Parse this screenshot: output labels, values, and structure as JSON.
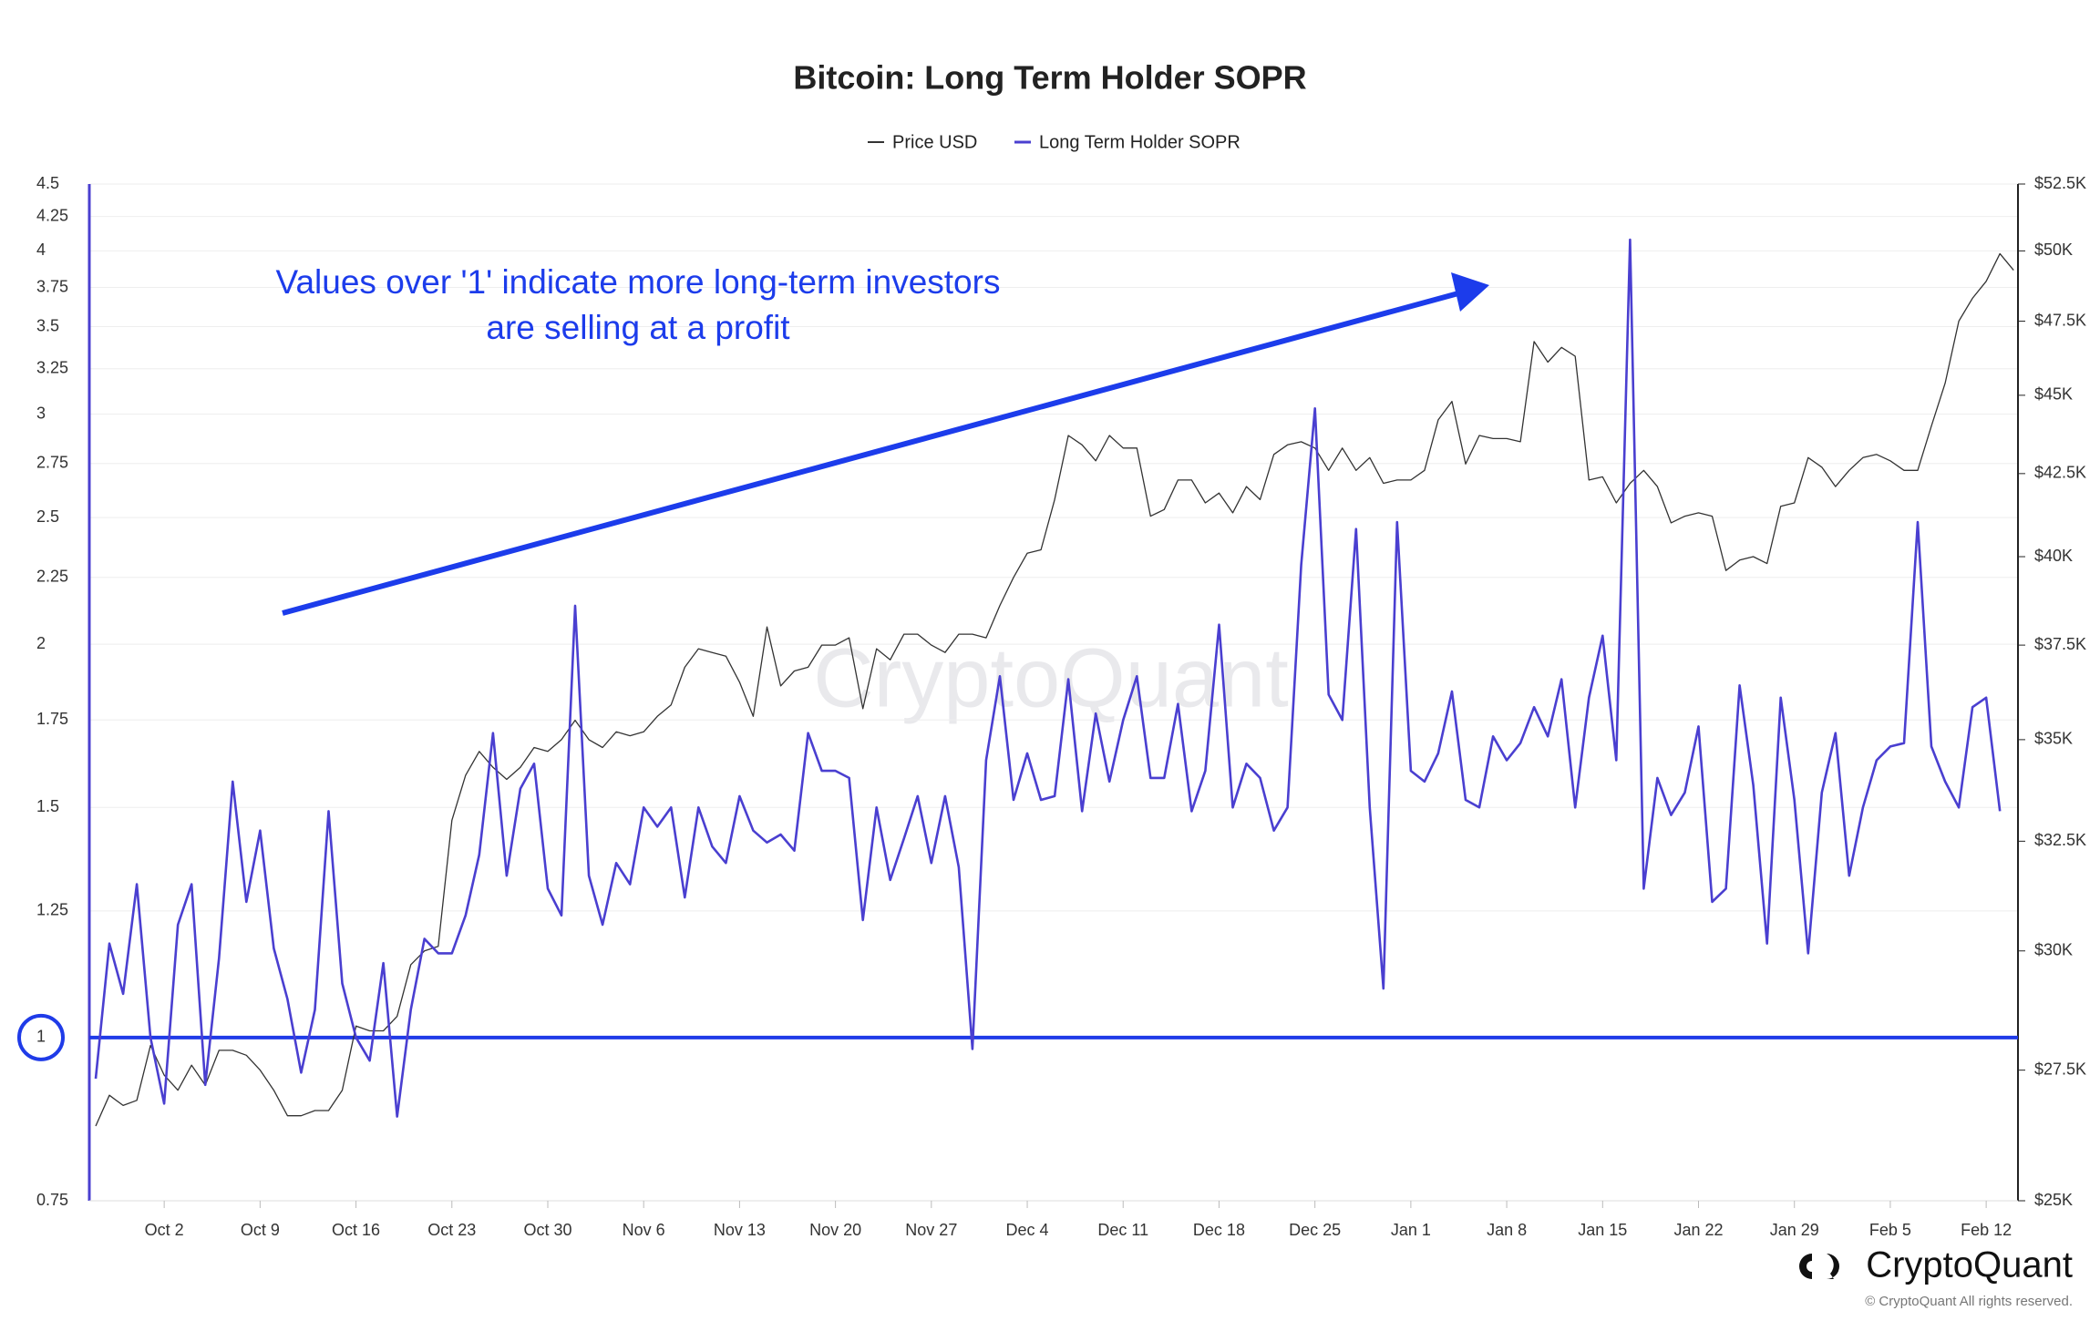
{
  "chart_data": {
    "type": "line",
    "title": "Bitcoin: Long Term Holder SOPR",
    "annotation": [
      "Values over '1' indicate more long-term investors",
      "are selling at a profit"
    ],
    "watermark": "CryptoQuant",
    "brand": "CryptoQuant",
    "copyright": "© CryptoQuant All rights reserved.",
    "categories": [
      null,
      null,
      null,
      null,
      null,
      "Oct 2",
      null,
      null,
      null,
      null,
      null,
      null,
      "Oct 9",
      null,
      null,
      null,
      null,
      null,
      null,
      "Oct 16",
      null,
      null,
      null,
      null,
      null,
      null,
      "Oct 23",
      null,
      null,
      null,
      null,
      null,
      null,
      "Oct 30",
      null,
      null,
      null,
      null,
      null,
      null,
      "Nov 6",
      null,
      null,
      null,
      null,
      null,
      null,
      "Nov 13",
      null,
      null,
      null,
      null,
      null,
      null,
      "Nov 20",
      null,
      null,
      null,
      null,
      null,
      null,
      "Nov 27",
      null,
      null,
      null,
      null,
      null,
      null,
      "Dec 4",
      null,
      null,
      null,
      null,
      null,
      null,
      "Dec 11",
      null,
      null,
      null,
      null,
      null,
      null,
      "Dec 18",
      null,
      null,
      null,
      null,
      null,
      null,
      "Dec 25",
      null,
      null,
      null,
      null,
      null,
      null,
      "Jan 1",
      null,
      null,
      null,
      null,
      null,
      null,
      "Jan 8",
      null,
      null,
      null,
      null,
      null,
      null,
      "Jan 15",
      null,
      null,
      null,
      null,
      null,
      null,
      "Jan 22",
      null,
      null,
      null,
      null,
      null,
      null,
      "Jan 29",
      null,
      null,
      null,
      null,
      null,
      null,
      "Feb 5",
      null,
      null,
      null,
      null,
      null,
      null,
      "Feb 12",
      null,
      null
    ],
    "series": [
      {
        "name": "Price USD",
        "color": "#333333",
        "axis": "y2",
        "values": [
          26400,
          27000,
          26800,
          26900,
          28000,
          27400,
          27100,
          27600,
          27200,
          27900,
          27900,
          27800,
          27500,
          27100,
          26600,
          26600,
          26700,
          26700,
          27100,
          28400,
          28300,
          28300,
          28600,
          29700,
          30000,
          30100,
          33000,
          34100,
          34700,
          34300,
          34000,
          34300,
          34800,
          34700,
          35000,
          35500,
          35000,
          34800,
          35200,
          35100,
          35200,
          35600,
          35900,
          36900,
          37400,
          37300,
          37200,
          36500,
          35600,
          38000,
          36400,
          36800,
          36900,
          37500,
          37500,
          37700,
          35800,
          37400,
          37100,
          37800,
          37800,
          37500,
          37300,
          37800,
          37800,
          37700,
          38600,
          39400,
          40100,
          40200,
          41700,
          43700,
          43400,
          42900,
          43700,
          43300,
          43300,
          41200,
          41400,
          42300,
          42300,
          41600,
          41900,
          41300,
          42100,
          41700,
          43100,
          43400,
          43500,
          43300,
          42600,
          43300,
          42600,
          43000,
          42200,
          42300,
          42300,
          42600,
          44200,
          44800,
          42800,
          43700,
          43600,
          43600,
          43500,
          46800,
          46100,
          46600,
          46300,
          42300,
          42400,
          41600,
          42200,
          42600,
          42100,
          41000,
          41200,
          41300,
          41200,
          39600,
          39900,
          40000,
          39800,
          41500,
          41600,
          43000,
          42700,
          42100,
          42600,
          43000,
          43100,
          42900,
          42600,
          42600,
          44000,
          45400,
          47500,
          48300,
          48900,
          49900,
          49300
        ]
      },
      {
        "name": "Long Term Holder SOPR",
        "color": "#4a3fd0",
        "values": [
          0.93,
          1.18,
          1.08,
          1.31,
          1.0,
          0.89,
          1.22,
          1.31,
          0.92,
          1.15,
          1.57,
          1.27,
          1.44,
          1.17,
          1.07,
          0.94,
          1.05,
          1.49,
          1.1,
          1.0,
          0.96,
          1.14,
          0.87,
          1.05,
          1.19,
          1.16,
          1.16,
          1.24,
          1.38,
          1.71,
          1.33,
          1.55,
          1.62,
          1.3,
          1.24,
          2.14,
          1.33,
          1.22,
          1.36,
          1.31,
          1.5,
          1.45,
          1.5,
          1.28,
          1.5,
          1.4,
          1.36,
          1.53,
          1.44,
          1.41,
          1.43,
          1.39,
          1.71,
          1.6,
          1.6,
          1.58,
          1.23,
          1.5,
          1.32,
          1.42,
          1.53,
          1.36,
          1.53,
          1.35,
          0.98,
          1.63,
          1.89,
          1.52,
          1.65,
          1.52,
          1.53,
          1.88,
          1.49,
          1.77,
          1.57,
          1.75,
          1.89,
          1.58,
          1.58,
          1.8,
          1.49,
          1.6,
          2.07,
          1.5,
          1.62,
          1.58,
          1.44,
          1.5,
          2.3,
          3.03,
          1.83,
          1.75,
          2.45,
          1.5,
          1.09,
          2.48,
          1.6,
          1.57,
          1.65,
          1.84,
          1.52,
          1.5,
          1.7,
          1.63,
          1.68,
          1.79,
          1.7,
          1.88,
          1.5,
          1.82,
          2.03,
          1.63,
          4.08,
          1.3,
          1.58,
          1.48,
          1.54,
          1.73,
          1.27,
          1.3,
          1.86,
          1.56,
          1.18,
          1.82,
          1.52,
          1.16,
          1.54,
          1.71,
          1.33,
          1.5,
          1.63,
          1.67,
          1.68,
          2.48,
          1.67,
          1.57,
          1.5,
          1.79,
          1.82,
          1.49,
          null
        ]
      }
    ],
    "ylim": [
      0.75,
      4.5
    ],
    "yticks": [
      0.75,
      1,
      1.25,
      1.5,
      1.75,
      2,
      2.25,
      2.5,
      2.75,
      3,
      3.25,
      3.5,
      3.75,
      4,
      4.25,
      4.5
    ],
    "ylog": true,
    "y2lim": [
      25000,
      52500
    ],
    "y2ticks": [
      {
        "value": 25000,
        "label": "$25K"
      },
      {
        "value": 27500,
        "label": "$27.5K"
      },
      {
        "value": 30000,
        "label": "$30K"
      },
      {
        "value": 32500,
        "label": "$32.5K"
      },
      {
        "value": 35000,
        "label": "$35K"
      },
      {
        "value": 37500,
        "label": "$37.5K"
      },
      {
        "value": 40000,
        "label": "$40K"
      },
      {
        "value": 42500,
        "label": "$42.5K"
      },
      {
        "value": 45000,
        "label": "$45K"
      },
      {
        "value": 47500,
        "label": "$47.5K"
      },
      {
        "value": 50000,
        "label": "$50K"
      },
      {
        "value": 52500,
        "label": "$52.5K"
      }
    ],
    "y2log": true,
    "reference_line": 1,
    "reference_color": "#1f3be8",
    "highlight_tick": 1,
    "annotation_color": "#1c3ceb",
    "grid": true,
    "legend": "top"
  }
}
